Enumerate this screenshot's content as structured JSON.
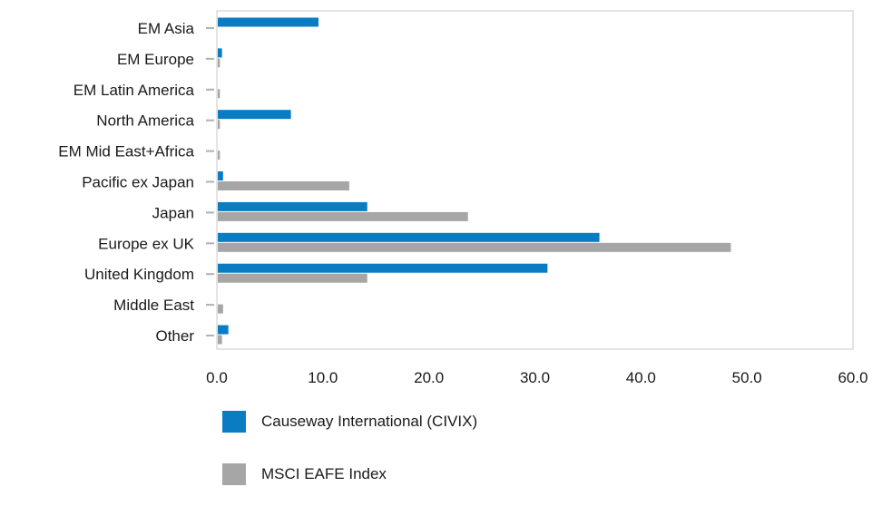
{
  "chart_data": {
    "type": "bar",
    "orientation": "horizontal",
    "categories": [
      "EM Asia",
      "EM Europe",
      "EM Latin America",
      "North America",
      "EM Mid East+Africa",
      "Pacific ex Japan",
      "Japan",
      "Europe ex UK",
      "United Kingdom",
      "Middle East",
      "Other"
    ],
    "series": [
      {
        "name": "Causeway International (CIVIX)",
        "color": "#0a7dc2",
        "values": [
          9.5,
          0.4,
          0.0,
          6.9,
          0.0,
          0.5,
          14.1,
          36.0,
          31.1,
          0.0,
          1.0
        ]
      },
      {
        "name": "MSCI EAFE Index",
        "color": "#a6a6a6",
        "values": [
          0.0,
          0.2,
          0.2,
          0.2,
          0.2,
          12.4,
          23.6,
          48.4,
          14.1,
          0.5,
          0.4
        ]
      }
    ],
    "xlim": [
      0,
      60
    ],
    "xticks": [
      "0.0",
      "10.0",
      "20.0",
      "30.0",
      "40.0",
      "50.0",
      "60.0"
    ],
    "grid": false,
    "legend_position": "bottom-left"
  }
}
